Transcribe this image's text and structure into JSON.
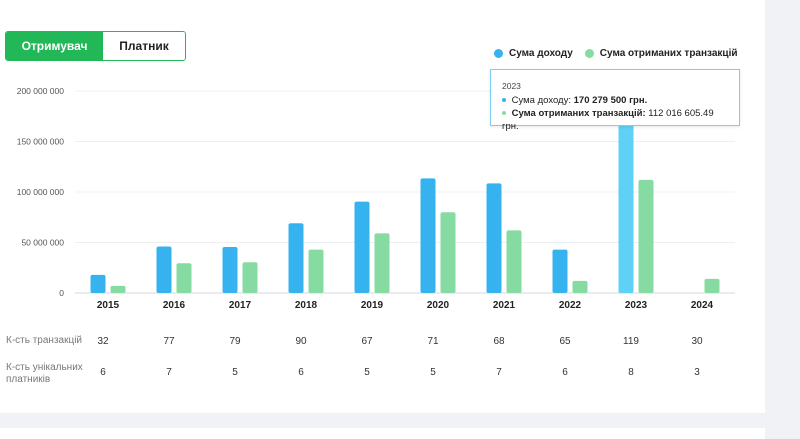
{
  "toggle": {
    "active_label": "Отримувач",
    "inactive_label": "Платник"
  },
  "colors": {
    "accent": "#22b857",
    "income": "#36b3ef",
    "income_highlight": "#5fd1f7",
    "transactions": "#86dba2",
    "tooltip_border": "#7ccfef"
  },
  "chart_data": {
    "type": "bar",
    "categories": [
      "2015",
      "2016",
      "2017",
      "2018",
      "2019",
      "2020",
      "2021",
      "2022",
      "2023",
      "2024"
    ],
    "series": [
      {
        "name": "Сума доходу",
        "values": [
          18000000,
          46000000,
          45500000,
          69000000,
          90500000,
          113500000,
          108500000,
          43000000,
          170279500,
          0
        ]
      },
      {
        "name": "Сума отриманих транзакцій",
        "values": [
          7000000,
          29500000,
          30500000,
          43000000,
          59000000,
          80000000,
          62000000,
          12000000,
          112016605.49,
          14000000
        ]
      }
    ],
    "ylim": [
      0,
      200000000
    ],
    "yticks": [
      "200 000 000",
      "150 000 000",
      "100 000 000",
      "50 000 000",
      "0"
    ],
    "yticks_values": [
      200000000,
      150000000,
      100000000,
      50000000,
      0
    ],
    "grid": true,
    "legend": "top-right",
    "highlighted_category": "2023"
  },
  "tooltip": {
    "year": "2023",
    "income_label": "Сума доходу:",
    "income_value": "170 279 500 грн.",
    "tx_label": "Сума отриманих транзакцій:",
    "tx_value": "112 016 605.49 грн."
  },
  "stats": {
    "transactions_label": "К-сть транзакцій",
    "transactions": [
      "32",
      "77",
      "79",
      "90",
      "67",
      "71",
      "68",
      "65",
      "119",
      "30"
    ],
    "unique_label_line1": "К-сть унікальних",
    "unique_label_line2": "платників",
    "unique_payers": [
      "6",
      "7",
      "5",
      "6",
      "5",
      "5",
      "7",
      "6",
      "8",
      "3"
    ]
  }
}
